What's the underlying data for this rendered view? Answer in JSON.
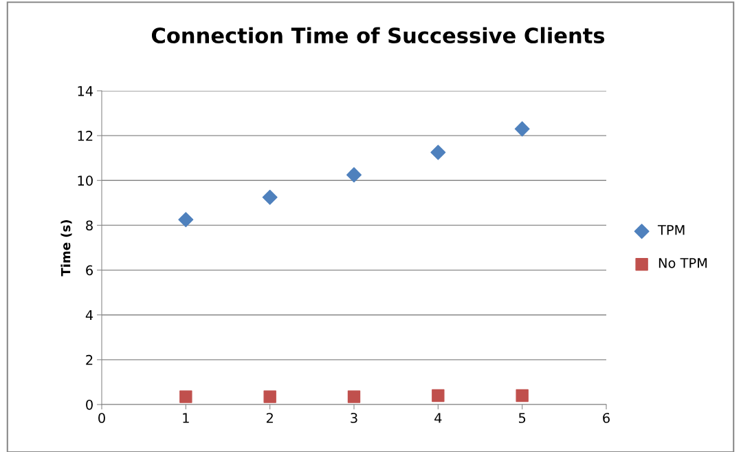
{
  "chart_data": {
    "type": "scatter",
    "title": "Connection Time of Successive Clients",
    "ylabel": "Time (s)",
    "x": [
      1,
      2,
      3,
      4,
      5
    ],
    "series": [
      {
        "name": "TPM",
        "color": "#4f81bd",
        "marker": "diamond",
        "values": [
          8.25,
          9.25,
          10.25,
          11.25,
          12.3
        ]
      },
      {
        "name": "No TPM",
        "color": "#c0504d",
        "marker": "square",
        "values": [
          0.35,
          0.35,
          0.35,
          0.4,
          0.4
        ]
      }
    ],
    "xlim": [
      0,
      6
    ],
    "xticks": [
      0,
      1,
      2,
      3,
      4,
      5,
      6
    ],
    "ylim": [
      0,
      14
    ],
    "yticks": [
      0,
      2,
      4,
      6,
      8,
      10,
      12,
      14
    ],
    "grid": "y",
    "legend": "right"
  }
}
